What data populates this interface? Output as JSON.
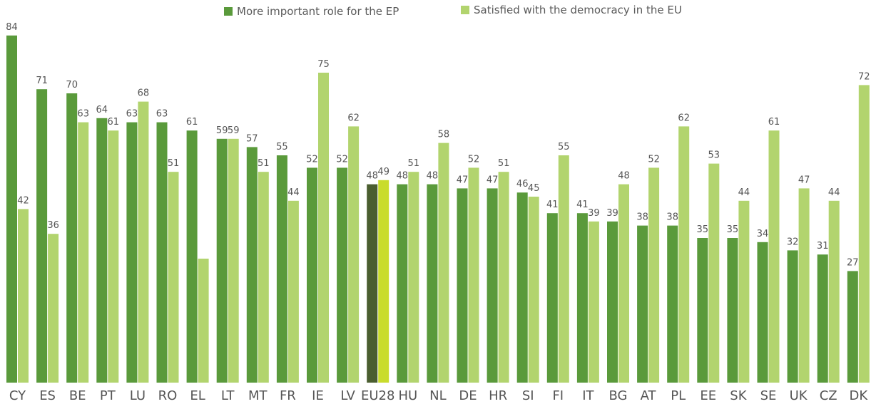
{
  "chart_data": {
    "type": "bar",
    "categories": [
      "CY",
      "ES",
      "BE",
      "PT",
      "LU",
      "RO",
      "EL",
      "LT",
      "MT",
      "FR",
      "IE",
      "LV",
      "EU28",
      "HU",
      "NL",
      "DE",
      "HR",
      "SI",
      "FI",
      "IT",
      "BG",
      "AT",
      "PL",
      "EE",
      "SK",
      "SE",
      "UK",
      "CZ",
      "DK"
    ],
    "series": [
      {
        "name": "More important role for the EP",
        "color": "#5a9a3b",
        "values": [
          84,
          71,
          70,
          64,
          63,
          63,
          61,
          59,
          57,
          55,
          52,
          52,
          48,
          48,
          48,
          47,
          47,
          46,
          41,
          41,
          39,
          38,
          38,
          35,
          35,
          34,
          32,
          31,
          27
        ]
      },
      {
        "name": "Satisfied with the democracy in the EU",
        "color": "#b2d46e",
        "values": [
          42,
          36,
          63,
          61,
          68,
          51,
          null,
          59,
          51,
          44,
          75,
          62,
          49,
          51,
          58,
          52,
          51,
          45,
          55,
          39,
          48,
          52,
          62,
          53,
          44,
          61,
          47,
          44,
          72
        ]
      }
    ],
    "highlight": {
      "category": "EU28",
      "colors": [
        "#4a5e30",
        "#c9dc2c"
      ]
    },
    "xlabel": "",
    "ylabel": "",
    "ylim": [
      0,
      85
    ],
    "grid": false,
    "legend_position": "top"
  }
}
